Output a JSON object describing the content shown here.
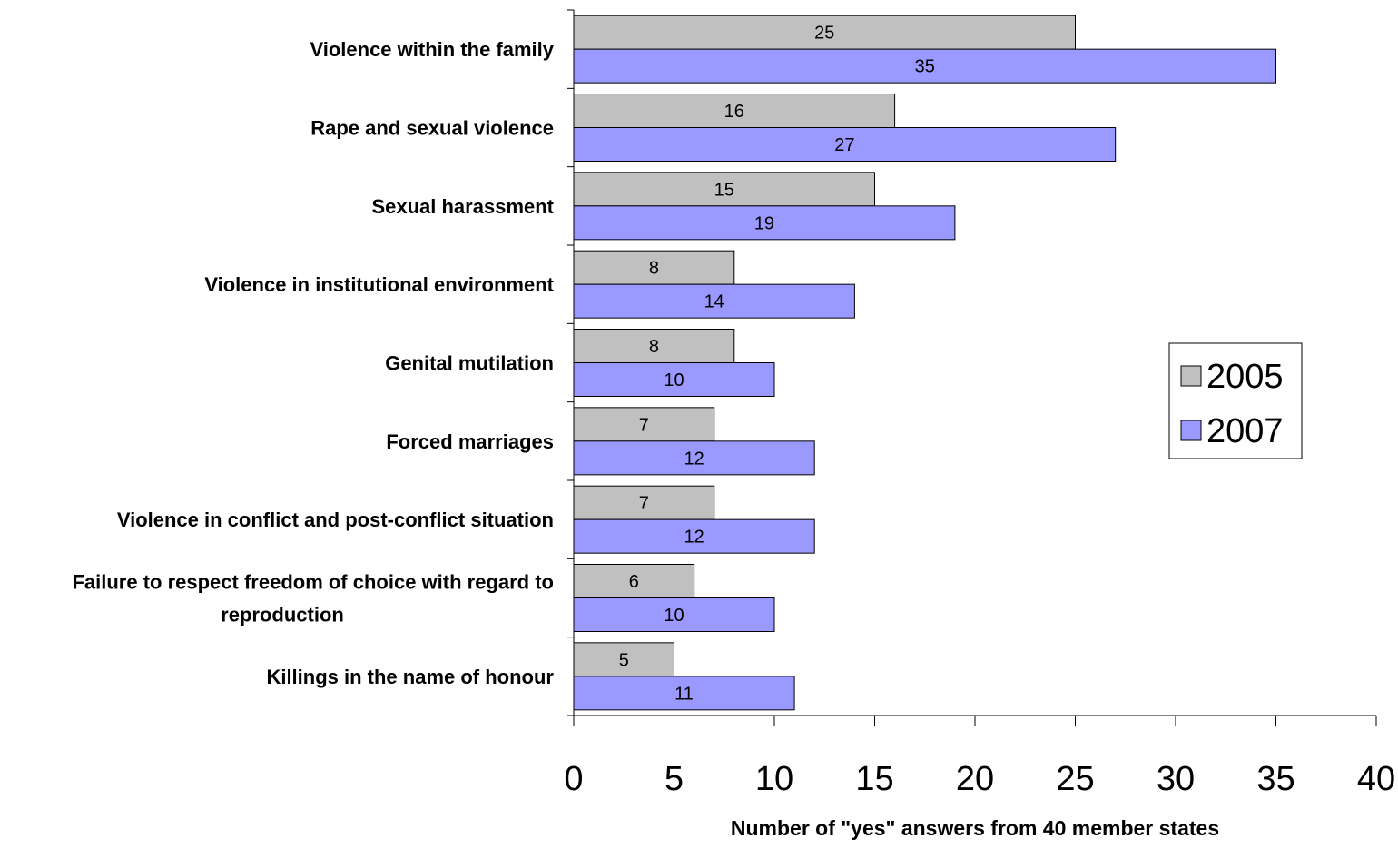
{
  "chart_data": {
    "type": "bar",
    "orientation": "horizontal",
    "categories": [
      "Violence within the family",
      "Rape and sexual violence",
      "Sexual harassment",
      "Violence in institutional environment",
      "Genital mutilation",
      "Forced marriages",
      "Violence in conflict and post-conflict situation",
      "Failure to respect freedom of choice with regard to reproduction",
      "Killings in the name of honour"
    ],
    "series": [
      {
        "name": "2005",
        "color": "#c0c0c0",
        "values": [
          25,
          16,
          15,
          8,
          8,
          7,
          7,
          6,
          5
        ]
      },
      {
        "name": "2007",
        "color": "#9999ff",
        "values": [
          35,
          27,
          19,
          14,
          10,
          12,
          12,
          10,
          11
        ]
      }
    ],
    "xlabel": "Number of \"yes\" answers from 40 member states",
    "ylabel": "",
    "xlim": [
      0,
      40
    ],
    "xticks": [
      "0",
      "5",
      "10",
      "15",
      "20",
      "25",
      "30",
      "35",
      "40"
    ],
    "grid": false,
    "legend_position": "right"
  }
}
